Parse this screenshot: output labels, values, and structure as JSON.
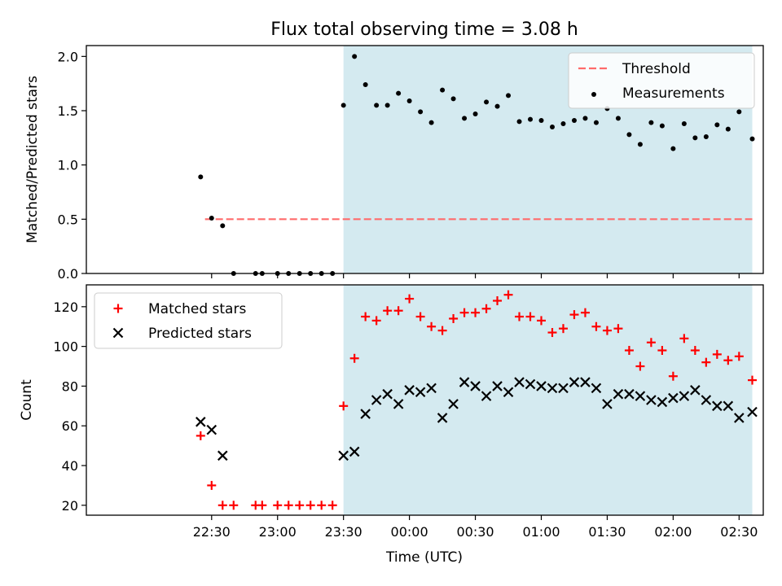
{
  "figure": {
    "title": "Flux total observing time = 3.08 h",
    "xlabel": "Time (UTC)"
  },
  "colors": {
    "shade": "#d4eaf0",
    "threshold": "#ff6b6b",
    "measurements": "#000000",
    "matched": "#ff0000",
    "predicted": "#000000"
  },
  "chart_data": [
    {
      "type": "scatter",
      "ylabel": "Matched/Predicted stars",
      "x_unit": "minutes after 22:00 UTC",
      "xlim": [
        -27,
        281
      ],
      "ylim": [
        0.0,
        2.1
      ],
      "yticks": [
        0.0,
        0.5,
        1.0,
        1.5,
        2.0
      ],
      "ytick_labels": [
        "0.0",
        "0.5",
        "1.0",
        "1.5",
        "2.0"
      ],
      "shaded_x_range": [
        90,
        276
      ],
      "legend": {
        "placement": "top-right",
        "entries": [
          "Threshold",
          "Measurements"
        ]
      },
      "threshold": {
        "name": "Threshold",
        "y": 0.5,
        "x_range": [
          27,
          276
        ],
        "style": "dashed"
      },
      "series": [
        {
          "name": "Measurements",
          "x": [
            25,
            30,
            35,
            40,
            50,
            53,
            60,
            65,
            70,
            75,
            80,
            85,
            90,
            95,
            100,
            105,
            110,
            115,
            120,
            125,
            130,
            135,
            140,
            145,
            150,
            155,
            160,
            165,
            170,
            175,
            180,
            185,
            190,
            195,
            200,
            205,
            210,
            215,
            220,
            225,
            230,
            235,
            240,
            245,
            250,
            255,
            260,
            265,
            270,
            276
          ],
          "y": [
            0.89,
            0.51,
            0.44,
            0.0,
            0.0,
            0.0,
            0.0,
            0.0,
            0.0,
            0.0,
            0.0,
            0.0,
            1.55,
            2.0,
            1.74,
            1.55,
            1.55,
            1.66,
            1.59,
            1.49,
            1.39,
            1.69,
            1.61,
            1.43,
            1.47,
            1.58,
            1.54,
            1.64,
            1.4,
            1.42,
            1.41,
            1.35,
            1.38,
            1.41,
            1.43,
            1.39,
            1.52,
            1.43,
            1.28,
            1.19,
            1.39,
            1.36,
            1.15,
            1.38,
            1.25,
            1.26,
            1.37,
            1.33,
            1.49,
            1.24
          ]
        }
      ]
    },
    {
      "type": "scatter",
      "ylabel": "Count",
      "xlabel": "Time (UTC)",
      "x_unit": "minutes after 22:00 UTC",
      "xlim": [
        -27,
        281
      ],
      "ylim": [
        15,
        131
      ],
      "yticks": [
        20,
        40,
        60,
        80,
        100,
        120
      ],
      "xticks": [
        30,
        60,
        90,
        120,
        150,
        180,
        210,
        240,
        270
      ],
      "xtick_labels": [
        "22:30",
        "23:00",
        "23:30",
        "00:00",
        "00:30",
        "01:00",
        "01:30",
        "02:00",
        "02:30"
      ],
      "shaded_x_range": [
        90,
        276
      ],
      "legend": {
        "placement": "top-left",
        "entries": [
          "Matched stars",
          "Predicted stars"
        ]
      },
      "series": [
        {
          "name": "Matched stars",
          "marker": "plus",
          "x": [
            25,
            30,
            35,
            40,
            50,
            53,
            60,
            65,
            70,
            75,
            80,
            85,
            90,
            95,
            100,
            105,
            110,
            115,
            120,
            125,
            130,
            135,
            140,
            145,
            150,
            155,
            160,
            165,
            170,
            175,
            180,
            185,
            190,
            195,
            200,
            205,
            210,
            215,
            220,
            225,
            230,
            235,
            240,
            245,
            250,
            255,
            260,
            265,
            270,
            276
          ],
          "y": [
            55,
            30,
            20,
            20,
            20,
            20,
            20,
            20,
            20,
            20,
            20,
            20,
            70,
            94,
            115,
            113,
            118,
            118,
            124,
            115,
            110,
            108,
            114,
            117,
            117,
            119,
            123,
            126,
            115,
            115,
            113,
            107,
            109,
            116,
            117,
            110,
            108,
            109,
            98,
            90,
            102,
            98,
            85,
            104,
            98,
            92,
            96,
            93,
            95,
            83
          ]
        },
        {
          "name": "Predicted stars",
          "marker": "x",
          "x": [
            25,
            30,
            35,
            90,
            95,
            100,
            105,
            110,
            115,
            120,
            125,
            130,
            135,
            140,
            145,
            150,
            155,
            160,
            165,
            170,
            175,
            180,
            185,
            190,
            195,
            200,
            205,
            210,
            215,
            220,
            225,
            230,
            235,
            240,
            245,
            250,
            255,
            260,
            265,
            270,
            276
          ],
          "y": [
            62,
            58,
            45,
            45,
            47,
            66,
            73,
            76,
            71,
            78,
            77,
            79,
            64,
            71,
            82,
            80,
            75,
            80,
            77,
            82,
            81,
            80,
            79,
            79,
            82,
            82,
            79,
            71,
            76,
            76,
            75,
            73,
            72,
            74,
            75,
            78,
            73,
            70,
            70,
            64,
            67
          ]
        }
      ]
    }
  ]
}
